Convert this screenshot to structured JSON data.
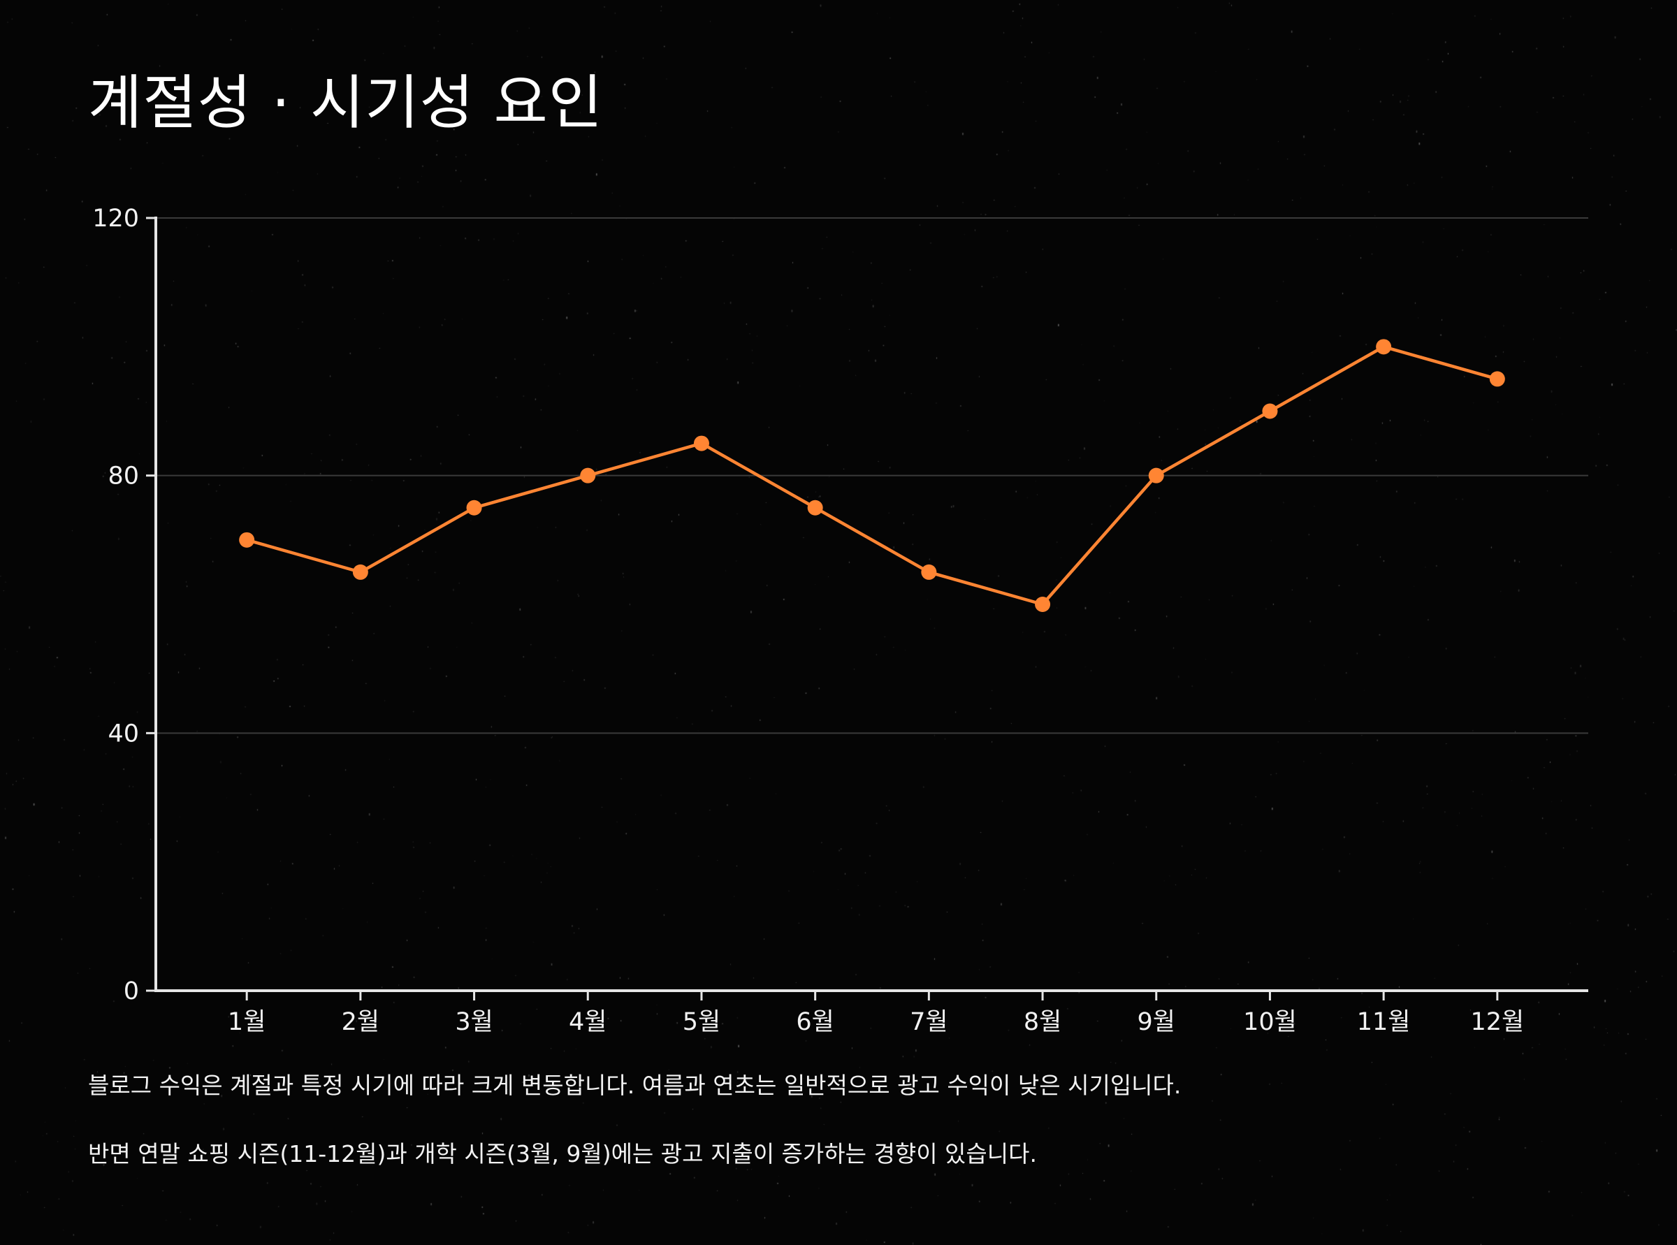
{
  "title": "계절성 · 시기성 요인",
  "captions": [
    "블로그 수익은 계절과 특정 시기에 따라 크게 변동합니다. 여름과 연초는 일반적으로 광고 수익이 낮은 시기입니다.",
    "반면 연말 쇼핑 시즌(11-12월)과 개학 시즌(3월, 9월)에는 광고 지출이 증가하는 경향이 있습니다."
  ],
  "colors": {
    "background": "#050505",
    "line": "#ff8533",
    "axis": "#e6e6e6",
    "grid": "#3a3a3a",
    "text": "#f2f2f2"
  },
  "chart_data": {
    "type": "line",
    "categories": [
      "1월",
      "2월",
      "3월",
      "4월",
      "5월",
      "6월",
      "7월",
      "8월",
      "9월",
      "10월",
      "11월",
      "12월"
    ],
    "series": [
      {
        "values": [
          70,
          65,
          75,
          80,
          85,
          75,
          65,
          60,
          80,
          90,
          100,
          95
        ]
      }
    ],
    "y_ticks": [
      "0",
      "40",
      "80",
      "120"
    ],
    "ylim": [
      0,
      120
    ],
    "grid": true,
    "legend": false,
    "xlabel": "",
    "ylabel": ""
  }
}
